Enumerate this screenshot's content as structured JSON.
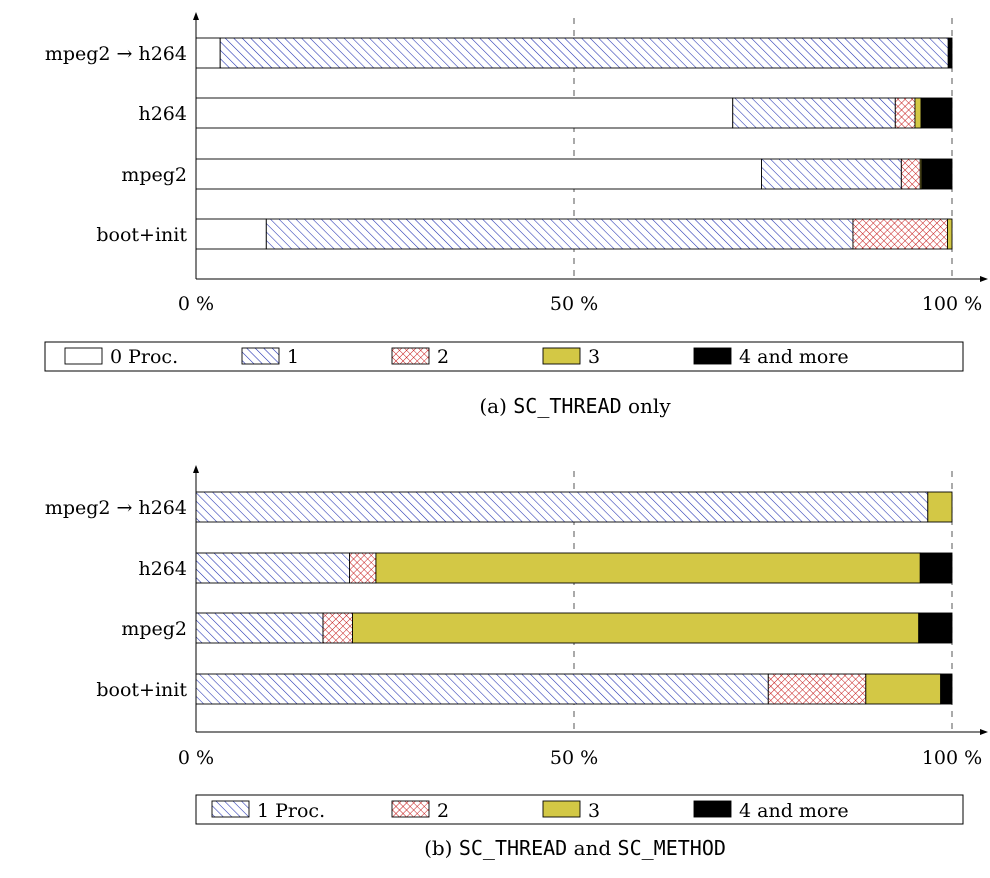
{
  "chart_data": [
    {
      "type": "bar",
      "orientation": "horizontal",
      "stacked": true,
      "caption_label": "(a)",
      "caption_parts": [
        {
          "text": "SC_THREAD",
          "code": true
        },
        {
          "text": " only",
          "code": false
        }
      ],
      "categories": [
        "mpeg2 → h264",
        "h264",
        "mpeg2",
        "boot+init"
      ],
      "xlim": [
        0,
        100
      ],
      "x_ticks": [
        {
          "value": 0,
          "label": "0 %"
        },
        {
          "value": 50,
          "label": "50 %"
        },
        {
          "value": 100,
          "label": "100 %"
        }
      ],
      "x_gridlines": [
        50,
        100
      ],
      "legend_placement": "bottom",
      "series": [
        {
          "name": "0 Proc.",
          "color": "#ffffff",
          "pattern": "none",
          "values": [
            3.2,
            71.0,
            74.8,
            9.3
          ]
        },
        {
          "name": "1",
          "color": "#1f2fb0",
          "pattern": "diagonal-hatch",
          "values": [
            96.3,
            21.5,
            18.5,
            77.6
          ]
        },
        {
          "name": "2",
          "color": "#c00000",
          "pattern": "crosshatch",
          "values": [
            0.0,
            2.6,
            2.5,
            12.5
          ]
        },
        {
          "name": "3",
          "color": "#d3c845",
          "pattern": "none",
          "values": [
            0.0,
            0.8,
            0.2,
            0.6
          ]
        },
        {
          "name": "4 and more",
          "color": "#000000",
          "pattern": "none",
          "values": [
            0.5,
            4.1,
            4.0,
            0.0
          ]
        }
      ]
    },
    {
      "type": "bar",
      "orientation": "horizontal",
      "stacked": true,
      "caption_label": "(b)",
      "caption_parts": [
        {
          "text": "SC_THREAD",
          "code": true
        },
        {
          "text": " and ",
          "code": false
        },
        {
          "text": "SC_METHOD",
          "code": true
        }
      ],
      "categories": [
        "mpeg2 → h264",
        "h264",
        "mpeg2",
        "boot+init"
      ],
      "xlim": [
        0,
        100
      ],
      "x_ticks": [
        {
          "value": 0,
          "label": "0 %"
        },
        {
          "value": 50,
          "label": "50 %"
        },
        {
          "value": 100,
          "label": "100 %"
        }
      ],
      "x_gridlines": [
        50,
        100
      ],
      "legend_placement": "bottom",
      "series": [
        {
          "name": "1 Proc.",
          "color": "#1f2fb0",
          "pattern": "diagonal-hatch",
          "values": [
            96.8,
            20.3,
            16.8,
            75.7
          ]
        },
        {
          "name": "2",
          "color": "#c00000",
          "pattern": "crosshatch",
          "values": [
            0.0,
            3.5,
            3.9,
            12.9
          ]
        },
        {
          "name": "3",
          "color": "#d3c845",
          "pattern": "none",
          "values": [
            3.2,
            72.0,
            74.9,
            9.9
          ]
        },
        {
          "name": "4 and more",
          "color": "#000000",
          "pattern": "none",
          "values": [
            0.0,
            4.2,
            4.4,
            1.5
          ]
        }
      ]
    }
  ]
}
